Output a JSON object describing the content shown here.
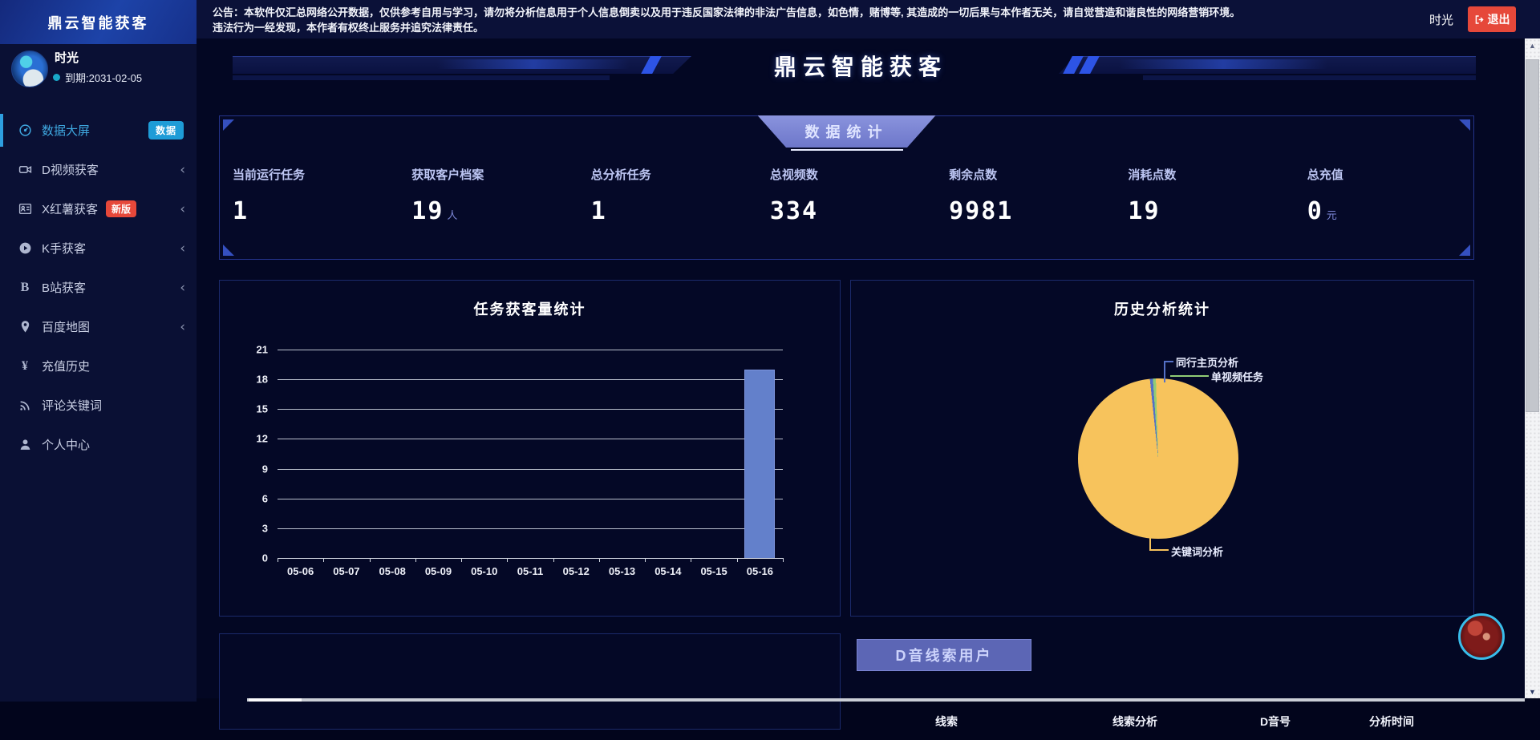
{
  "app": {
    "logo_title": "鼎云智能获客"
  },
  "notice": {
    "line1": "公告：本软件仅汇总网络公开数据，仅供参考自用与学习，请勿将分析信息用于个人信息倒卖以及用于违反国家法律的非法广告信息，如色情，赌博等, 其造成的一切后果与本作者无关，请自觉营造和谐良性的网络营销环境。",
    "line2": "违法行为一经发现，本作者有权终止服务并追究法律责任。"
  },
  "topbar": {
    "username": "时光",
    "logout_label": "退出"
  },
  "user": {
    "name": "时光",
    "expiry": "到期:2031-02-05"
  },
  "sidebar": {
    "items": [
      {
        "label": "数据大屏",
        "icon": "dashboard-icon",
        "badge": "数据",
        "active": true
      },
      {
        "label": "D视频获客",
        "icon": "video-icon",
        "chevron": "‹"
      },
      {
        "label": "X红薯获客",
        "icon": "contact-card-icon",
        "badge": "新版",
        "chevron": "‹"
      },
      {
        "label": "K手获客",
        "icon": "play-circle-icon",
        "chevron": "‹"
      },
      {
        "label": "B站获客",
        "icon": "bilibili-icon",
        "glyph": "B",
        "chevron": "‹"
      },
      {
        "label": "百度地图",
        "icon": "map-pin-icon",
        "chevron": "‹"
      },
      {
        "label": "充值历史",
        "icon": "yen-icon",
        "glyph": "¥"
      },
      {
        "label": "评论关键词",
        "icon": "rss-icon"
      },
      {
        "label": "个人中心",
        "icon": "user-icon"
      }
    ]
  },
  "banner": {
    "title": "鼎云智能获客"
  },
  "stats": {
    "header": "数据统计",
    "items": [
      {
        "label": "当前运行任务",
        "value": "1",
        "suffix": ""
      },
      {
        "label": "获取客户档案",
        "value": "19",
        "suffix": "人"
      },
      {
        "label": "总分析任务",
        "value": "1",
        "suffix": ""
      },
      {
        "label": "总视频数",
        "value": "334",
        "suffix": ""
      },
      {
        "label": "剩余点数",
        "value": "9981",
        "suffix": ""
      },
      {
        "label": "消耗点数",
        "value": "19",
        "suffix": ""
      },
      {
        "label": "总充值",
        "value": "0",
        "suffix": "元"
      }
    ]
  },
  "chart_data": [
    {
      "type": "bar",
      "title": "任务获客量统计",
      "categories": [
        "05-06",
        "05-07",
        "05-08",
        "05-09",
        "05-10",
        "05-11",
        "05-12",
        "05-13",
        "05-14",
        "05-15",
        "05-16"
      ],
      "values": [
        0,
        0,
        0,
        0,
        0,
        0,
        0,
        0,
        0,
        0,
        19
      ],
      "xlabel": "",
      "ylabel": "",
      "ylim": [
        0,
        21
      ],
      "ytick_step": 3,
      "grid": true,
      "legend": false,
      "bar_color": "#6380cb"
    },
    {
      "type": "pie",
      "title": "历史分析统计",
      "slices": [
        {
          "name": "同行主页分析",
          "percent_est": 0.6,
          "color": "#5470c6"
        },
        {
          "name": "单视频任务",
          "percent_est": 0.6,
          "color": "#91cc75"
        },
        {
          "name": "关键词分析",
          "percent_est": 98.8,
          "color": "#f7c35c"
        }
      ],
      "label_style": "leader-lines"
    }
  ],
  "leads": {
    "header": "D音线索用户",
    "columns": [
      "线索",
      "线索分析",
      "D音号",
      "分析时间"
    ]
  },
  "colors": {
    "accent_blue": "#3fa8e0",
    "badge_cyan": "#1e9cd7",
    "badge_red": "#e6483a",
    "logout_red": "#e6483a",
    "panel_border": "#24338a",
    "bar_blue": "#6380cb",
    "pie_yellow": "#f7c35c",
    "header_trapezoid": "#7b85d2",
    "leads_header_bg": "#5c66b5"
  }
}
